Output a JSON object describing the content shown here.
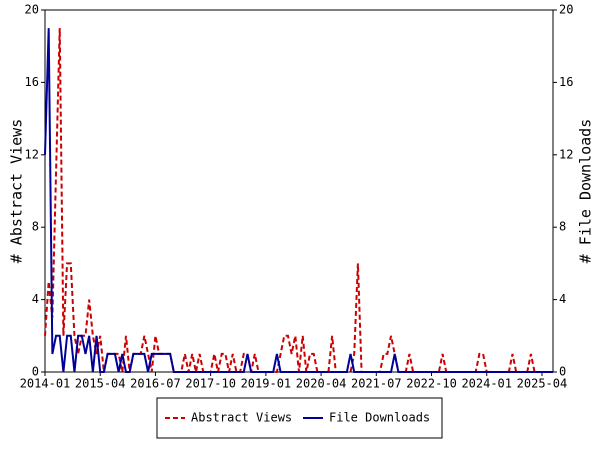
{
  "chart_data": {
    "type": "line",
    "categories": [
      "2014-01",
      null,
      null,
      null,
      null,
      null,
      null,
      null,
      null,
      null,
      null,
      null,
      null,
      null,
      null,
      "2015-04",
      null,
      null,
      null,
      null,
      null,
      null,
      null,
      null,
      null,
      null,
      null,
      null,
      null,
      null,
      "2016-07",
      null,
      null,
      null,
      null,
      null,
      null,
      null,
      null,
      null,
      null,
      null,
      null,
      null,
      null,
      "2017-10",
      null,
      null,
      null,
      null,
      null,
      null,
      null,
      null,
      null,
      null,
      null,
      null,
      null,
      null,
      "2019-01",
      null,
      null,
      null,
      null,
      null,
      null,
      null,
      null,
      null,
      null,
      null,
      null,
      null,
      null,
      "2020-04",
      null,
      null,
      null,
      null,
      null,
      null,
      null,
      null,
      null,
      null,
      null,
      null,
      null,
      null,
      "2021-07",
      null,
      null,
      null,
      null,
      null,
      null,
      null,
      null,
      null,
      null,
      null,
      null,
      null,
      null,
      "2022-10",
      null,
      null,
      null,
      null,
      null,
      null,
      null,
      null,
      null,
      null,
      null,
      null,
      null,
      null,
      "2024-01",
      null,
      null,
      null,
      null,
      null,
      null,
      null,
      null,
      null,
      null,
      null,
      null,
      null,
      null,
      "2025-04",
      null,
      null,
      null
    ],
    "ylabel": "# Abstract Views",
    "y2label": "# File Downloads",
    "ylim": [
      0,
      20
    ],
    "yticks": [
      0,
      4,
      8,
      12,
      16,
      20
    ],
    "y2lim": [
      0,
      20
    ],
    "y2ticks": [
      0,
      4,
      8,
      12,
      16,
      20
    ],
    "legend": "bottom",
    "series": [
      {
        "name": "Abstract Views",
        "color": "#cc0000",
        "linestyle": "dashed",
        "values": [
          2,
          5,
          3,
          11,
          19,
          2,
          6,
          6,
          2,
          1,
          2,
          2,
          4,
          2,
          1,
          2,
          0,
          1,
          1,
          1,
          1,
          0,
          2,
          0,
          1,
          1,
          1,
          2,
          1,
          0,
          2,
          1,
          1,
          1,
          1,
          0,
          0,
          0,
          1,
          0,
          1,
          0,
          1,
          0,
          0,
          0,
          1,
          0,
          1,
          1,
          0,
          1,
          0,
          0,
          1,
          1,
          0,
          1,
          0,
          0,
          0,
          0,
          0,
          0,
          1,
          2,
          2,
          1,
          2,
          0,
          2,
          0,
          1,
          1,
          0,
          0,
          0,
          0,
          2,
          0,
          0,
          0,
          0,
          0,
          1,
          6,
          0,
          0,
          0,
          0,
          0,
          0,
          1,
          1,
          2,
          1,
          0,
          0,
          0,
          1,
          0,
          0,
          0,
          0,
          0,
          0,
          0,
          0,
          1,
          0,
          0,
          0,
          0,
          0,
          0,
          0,
          0,
          0,
          1,
          1,
          0,
          0,
          0,
          0,
          0,
          0,
          0,
          1,
          0,
          0,
          0,
          0,
          1,
          0,
          0,
          0,
          0,
          0,
          0
        ]
      },
      {
        "name": "File Downloads",
        "color": "#000099",
        "linestyle": "solid",
        "axis": "y2",
        "values": [
          12,
          19,
          1,
          2,
          2,
          0,
          2,
          2,
          0,
          2,
          2,
          1,
          2,
          0,
          2,
          0,
          0,
          1,
          1,
          1,
          0,
          1,
          0,
          0,
          1,
          1,
          1,
          1,
          0,
          1,
          1,
          1,
          1,
          1,
          1,
          0,
          0,
          0,
          0,
          0,
          0,
          0,
          0,
          0,
          0,
          0,
          0,
          0,
          0,
          0,
          0,
          0,
          0,
          0,
          0,
          1,
          0,
          0,
          0,
          0,
          0,
          0,
          0,
          1,
          0,
          0,
          0,
          0,
          0,
          0,
          0,
          0,
          0,
          0,
          0,
          0,
          0,
          0,
          0,
          0,
          0,
          0,
          0,
          1,
          0,
          0,
          0,
          0,
          0,
          0,
          0,
          0,
          0,
          0,
          0,
          1,
          0,
          0,
          0,
          0,
          0,
          0,
          0,
          0,
          0,
          0,
          0,
          0,
          0,
          0,
          0,
          0,
          0,
          0,
          0,
          0,
          0,
          0,
          0,
          0,
          0,
          0,
          0,
          0,
          0,
          0,
          0,
          0,
          0,
          0,
          0,
          0,
          0,
          0,
          0,
          0,
          0,
          0,
          0
        ]
      }
    ]
  }
}
